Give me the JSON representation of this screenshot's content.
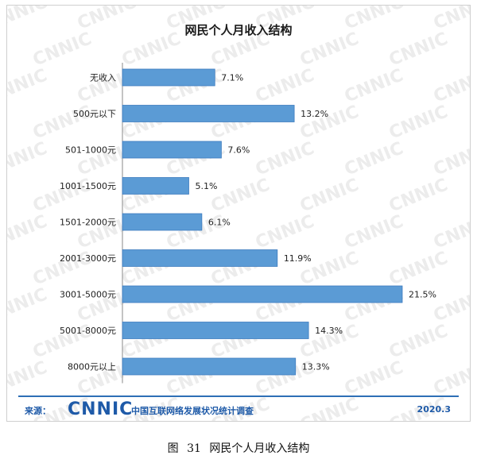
{
  "caption": "图 31 网民个人月收入结构",
  "footer": {
    "source_label": "来源：",
    "logo_text": "CNNIC",
    "org_name": "中国互联网络发展状况统计调查",
    "date": "2020.3"
  },
  "watermark_text": "CNNIC",
  "colors": {
    "bar": "#5b9bd5",
    "bar_border": "#3e7cbf",
    "footer": "#1e5aa8",
    "watermark": "#ececec"
  },
  "chart_data": {
    "type": "bar",
    "orientation": "horizontal",
    "title": "网民个人月收入结构",
    "categories": [
      "无收入",
      "500元以下",
      "501-1000元",
      "1001-1500元",
      "1501-2000元",
      "2001-3000元",
      "3001-5000元",
      "5001-8000元",
      "8000元以上"
    ],
    "values": [
      7.1,
      13.2,
      7.6,
      5.1,
      6.1,
      11.9,
      21.5,
      14.3,
      13.3
    ],
    "value_labels": [
      "7.1%",
      "13.2%",
      "7.6%",
      "5.1%",
      "6.1%",
      "11.9%",
      "21.5%",
      "14.3%",
      "13.3%"
    ],
    "unit": "%",
    "xlim": [
      0,
      21.5
    ],
    "grid": false,
    "legend": "none"
  }
}
